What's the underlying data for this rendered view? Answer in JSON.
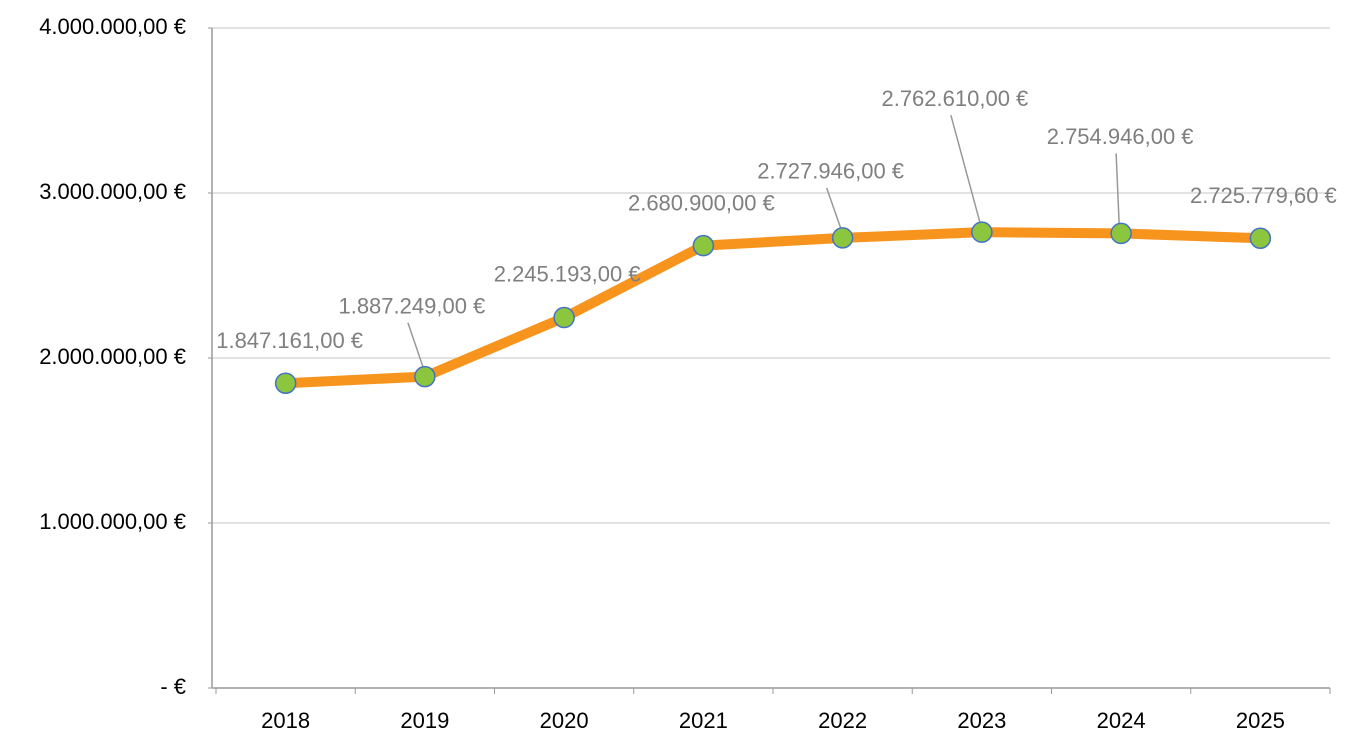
{
  "chart_data": {
    "type": "line",
    "categories": [
      "2018",
      "2019",
      "2020",
      "2021",
      "2022",
      "2023",
      "2024",
      "2025"
    ],
    "series": [
      {
        "color": "#f7941d",
        "marker_color": "#8cc63f",
        "marker_edge": "#4472c4",
        "values": [
          1847161,
          1887249,
          2245193,
          2680900,
          2727946,
          2762610,
          2754946,
          2725779.6
        ],
        "value_labels": [
          "1.847.161,00 €",
          "1.887.249,00 €",
          "2.245.193,00 €",
          "2.680.900,00 €",
          "2.727.946,00 €",
          "2.762.610,00 €",
          "2.754.946,00 €",
          "2.725.779,60 €"
        ]
      }
    ],
    "ylim": [
      0,
      4000000
    ],
    "yticks": [
      {
        "value": 0,
        "label": "-  €"
      },
      {
        "value": 1000000,
        "label": "1.000.000,00 €"
      },
      {
        "value": 2000000,
        "label": "2.000.000,00 €"
      },
      {
        "value": 3000000,
        "label": "3.000.000,00 €"
      },
      {
        "value": 4000000,
        "label": "4.000.000,00 €"
      }
    ],
    "grid": true
  }
}
